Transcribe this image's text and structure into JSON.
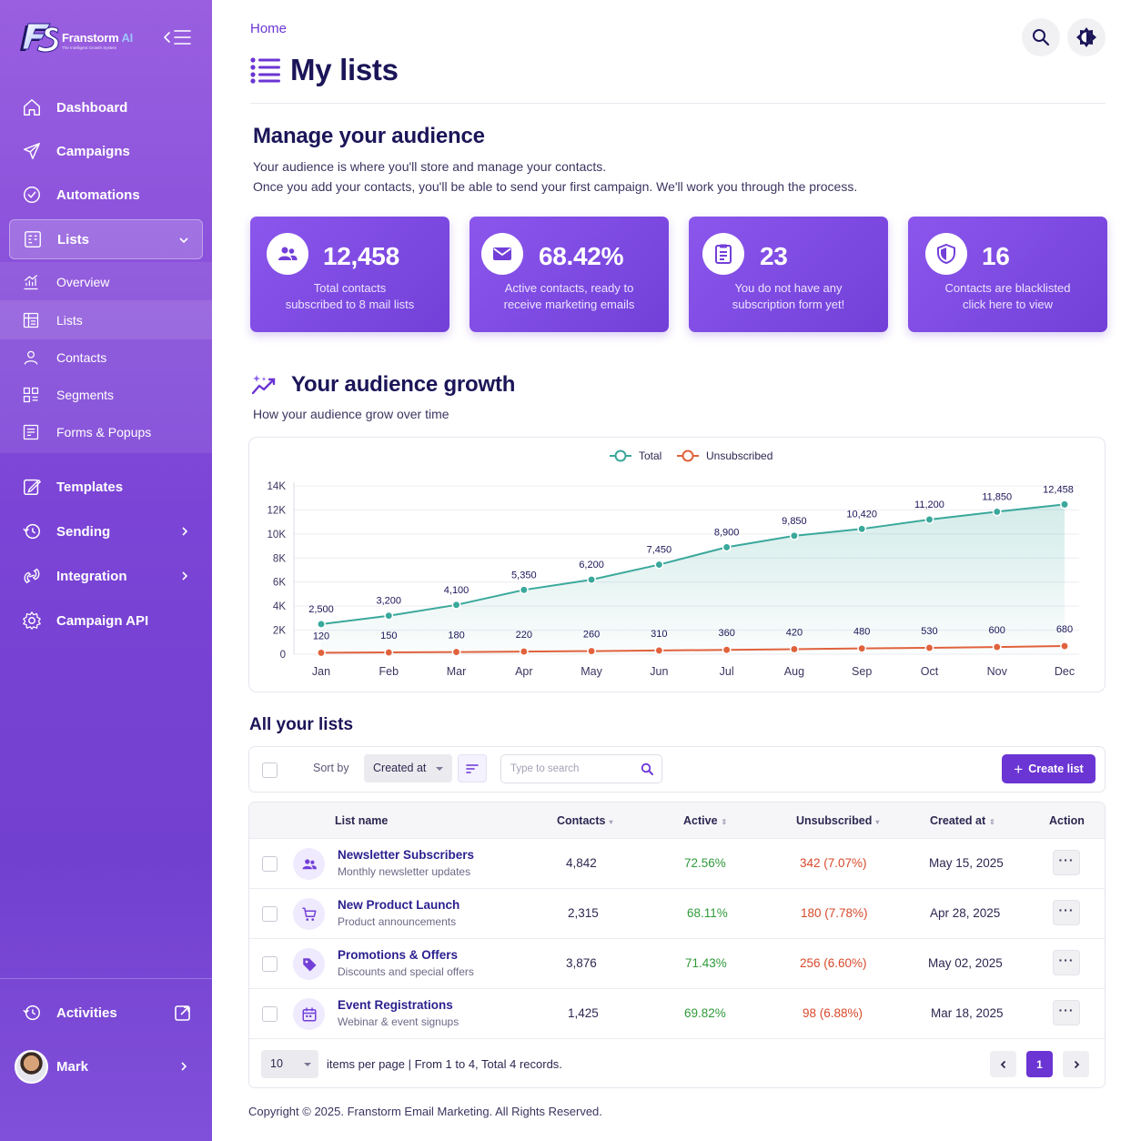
{
  "brand": {
    "name": "Franstorm",
    "name_suffix": "AI",
    "tagline": "The Intelligent Growth System"
  },
  "sidebar": {
    "items": [
      {
        "label": "Dashboard",
        "icon": "home-icon"
      },
      {
        "label": "Campaigns",
        "icon": "send-icon"
      },
      {
        "label": "Automations",
        "icon": "automation-icon"
      },
      {
        "label": "Lists",
        "icon": "lists-icon",
        "expanded": true
      },
      {
        "label": "Templates",
        "icon": "template-icon"
      },
      {
        "label": "Sending",
        "icon": "sending-icon"
      },
      {
        "label": "Integration",
        "icon": "integration-icon"
      },
      {
        "label": "Campaign API",
        "icon": "gear-icon"
      }
    ],
    "sub_items": [
      {
        "label": "Overview",
        "icon": "chart-icon"
      },
      {
        "label": "Lists",
        "icon": "list-grid-icon",
        "active": true
      },
      {
        "label": "Contacts",
        "icon": "user-icon"
      },
      {
        "label": "Segments",
        "icon": "segments-icon"
      },
      {
        "label": "Forms & Popups",
        "icon": "form-icon"
      }
    ],
    "activities_label": "Activities",
    "user_name": "Mark"
  },
  "header": {
    "breadcrumb": "Home",
    "title": "My lists"
  },
  "intro": {
    "title": "Manage your audience",
    "line1": "Your audience is where you'll store and manage your contacts.",
    "line2": "Once you add your contacts, you'll be able to send your first campaign. We'll work you through the process."
  },
  "stats": [
    {
      "value": "12,458",
      "line1": "Total contacts",
      "line2": "subscribed to 8 mail lists",
      "icon": "users-icon"
    },
    {
      "value": "68.42%",
      "line1": "Active contacts, ready to",
      "line2": "receive marketing emails",
      "icon": "mail-icon"
    },
    {
      "value": "23",
      "line1": "You do not have any",
      "line2": "subscription form yet!",
      "icon": "form-doc-icon"
    },
    {
      "value": "16",
      "line1": "Contacts are blacklisted",
      "line2": "click here to view",
      "icon": "shield-icon"
    }
  ],
  "growth": {
    "title": "Your audience growth",
    "subtitle": "How your audience grow over time"
  },
  "chart_data": {
    "type": "line",
    "categories": [
      "Jan",
      "Feb",
      "Mar",
      "Apr",
      "May",
      "Jun",
      "Jul",
      "Aug",
      "Sep",
      "Oct",
      "Nov",
      "Dec"
    ],
    "series": [
      {
        "name": "Total",
        "color": "#3aa89b",
        "values": [
          2500,
          3200,
          4100,
          5350,
          6200,
          7450,
          8900,
          9850,
          10420,
          11200,
          11850,
          12458
        ],
        "labels": [
          "2,500",
          "3,200",
          "4,100",
          "5,350",
          "6,200",
          "7,450",
          "8,900",
          "9,850",
          "10,420",
          "11,200",
          "11,850",
          "12,458"
        ]
      },
      {
        "name": "Unsubscribed",
        "color": "#e0623d",
        "values": [
          120,
          150,
          180,
          220,
          260,
          310,
          360,
          420,
          480,
          530,
          600,
          680
        ],
        "labels": [
          "120",
          "150",
          "180",
          "220",
          "260",
          "310",
          "360",
          "420",
          "480",
          "530",
          "600",
          "680"
        ]
      }
    ],
    "yticks": [
      0,
      2000,
      4000,
      6000,
      8000,
      10000,
      12000,
      14000
    ],
    "ytick_labels": [
      "0",
      "2K",
      "4K",
      "6K",
      "8K",
      "10K",
      "12K",
      "14K"
    ],
    "ylim": [
      0,
      14000
    ],
    "legend": "top-center",
    "grid": true
  },
  "lists": {
    "title": "All your lists",
    "sort_label": "Sort by",
    "sort_value": "Created at",
    "search_placeholder": "Type to search",
    "create_label": "Create list",
    "columns": [
      "List name",
      "Contacts",
      "Active",
      "Unsubscribed",
      "Created at",
      "Action"
    ],
    "rows": [
      {
        "name": "Newsletter Subscribers",
        "desc": "Monthly newsletter updates",
        "contacts": "4,842",
        "active": "72.56%",
        "unsub": "342 (7.07%)",
        "created": "May 15, 2025",
        "icon": "users-icon"
      },
      {
        "name": "New Product Launch",
        "desc": "Product announcements",
        "contacts": "2,315",
        "active": "68.11%",
        "unsub": "180 (7.78%)",
        "created": "Apr 28, 2025",
        "icon": "cart-icon"
      },
      {
        "name": "Promotions & Offers",
        "desc": "Discounts and special offers",
        "contacts": "3,876",
        "active": "71.43%",
        "unsub": "256 (6.60%)",
        "created": "May 02, 2025",
        "icon": "tag-icon"
      },
      {
        "name": "Event Registrations",
        "desc": "Webinar & event signups",
        "contacts": "1,425",
        "active": "69.82%",
        "unsub": "98 (6.88%)",
        "created": "Mar 18, 2025",
        "icon": "calendar-icon"
      }
    ],
    "more_label": "···",
    "per_page": "10",
    "pagination_text": "items per page | From 1 to 4, Total 4 records.",
    "current_page": "1"
  },
  "colors": {
    "accent": "#6b35d4",
    "active_green": "#2f9a3a",
    "unsub_red": "#d8492b"
  },
  "copyright": "Copyright © 2025. Franstorm Email Marketing. All Rights Reserved."
}
